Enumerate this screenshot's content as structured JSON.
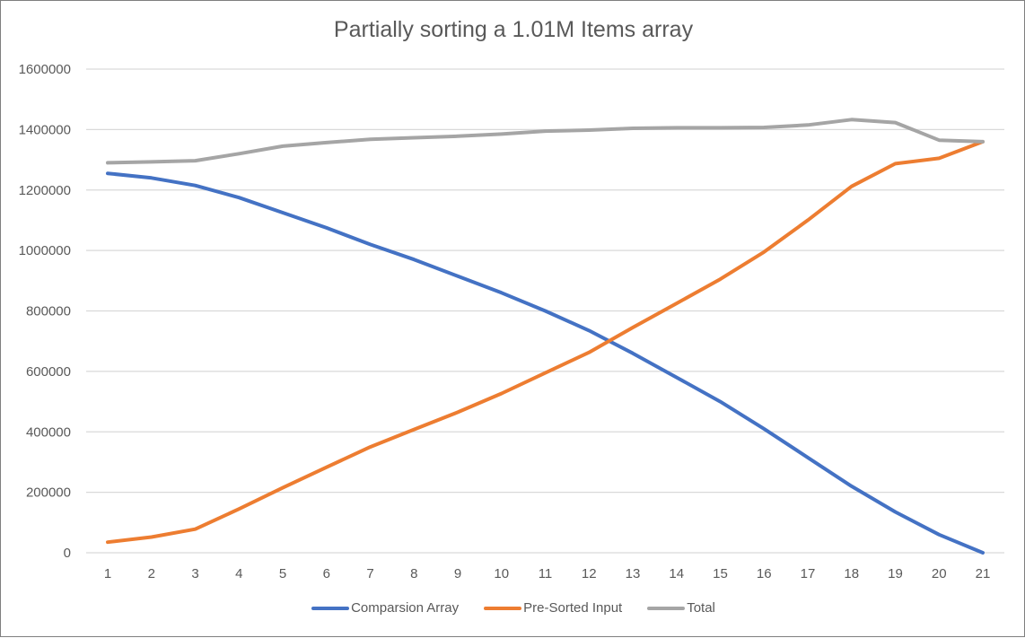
{
  "chart_data": {
    "type": "line",
    "title": "Partially sorting a 1.01M Items array",
    "xlabel": "",
    "ylabel": "",
    "x": [
      1,
      2,
      3,
      4,
      5,
      6,
      7,
      8,
      9,
      10,
      11,
      12,
      13,
      14,
      15,
      16,
      17,
      18,
      19,
      20,
      21
    ],
    "ylim": [
      0,
      1600000
    ],
    "yticks": [
      0,
      200000,
      400000,
      600000,
      800000,
      1000000,
      1200000,
      1400000,
      1600000
    ],
    "ytick_labels": [
      "0",
      "200000",
      "400000",
      "600000",
      "800000",
      "1000000",
      "1200000",
      "1400000",
      "1600000"
    ],
    "grid": true,
    "legend_position": "bottom",
    "series": [
      {
        "name": "Comparsion Array",
        "color": "#4472C4",
        "values": [
          1255000,
          1240000,
          1215000,
          1175000,
          1125000,
          1075000,
          1020000,
          970000,
          915000,
          860000,
          800000,
          735000,
          660000,
          580000,
          500000,
          410000,
          315000,
          220000,
          135000,
          60000,
          0
        ]
      },
      {
        "name": "Pre-Sorted Input",
        "color": "#ED7D31",
        "values": [
          35000,
          52000,
          78000,
          145000,
          215000,
          283000,
          350000,
          408000,
          465000,
          527000,
          595000,
          663000,
          745000,
          825000,
          905000,
          995000,
          1100000,
          1212000,
          1287000,
          1305000,
          1360000
        ]
      },
      {
        "name": "Total",
        "color": "#A5A5A5",
        "values": [
          1290000,
          1293000,
          1297000,
          1320000,
          1345000,
          1357000,
          1368000,
          1373000,
          1378000,
          1385000,
          1395000,
          1398000,
          1404000,
          1406000,
          1406000,
          1407000,
          1415000,
          1433000,
          1423000,
          1365000,
          1360000
        ]
      }
    ]
  }
}
